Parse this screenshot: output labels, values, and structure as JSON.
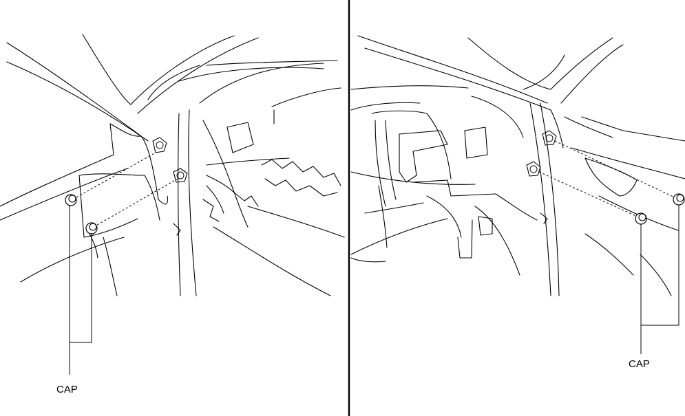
{
  "panels": [
    {
      "id": "left",
      "callout": "CAP"
    },
    {
      "id": "right",
      "callout": "CAP"
    }
  ],
  "colors": {
    "line": "#000000",
    "background": "#ffffff"
  }
}
